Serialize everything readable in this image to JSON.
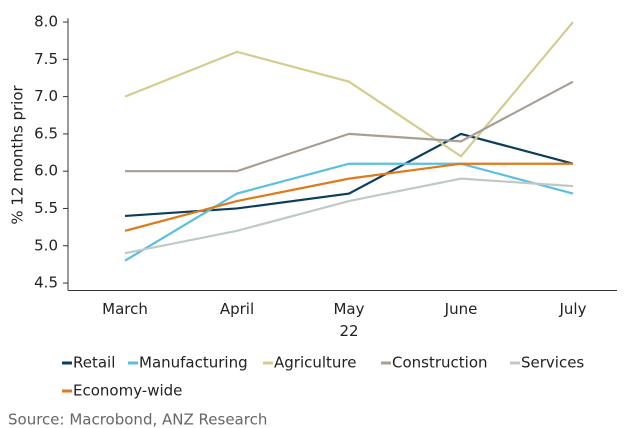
{
  "chart_data": {
    "type": "line",
    "y_label": "% 12 months prior",
    "categories": [
      "March",
      "April",
      "May",
      "June",
      "July"
    ],
    "x_annotation": "22",
    "series": [
      {
        "name": "Retail",
        "color": "#0b3e5e",
        "values": [
          5.4,
          5.5,
          5.7,
          6.5,
          6.1
        ]
      },
      {
        "name": "Manufacturing",
        "color": "#5bc0de",
        "values": [
          4.8,
          5.7,
          6.1,
          6.1,
          5.7
        ]
      },
      {
        "name": "Agriculture",
        "color": "#d4cc8f",
        "values": [
          7.0,
          7.6,
          7.2,
          6.2,
          8.0
        ]
      },
      {
        "name": "Construction",
        "color": "#a89e94",
        "values": [
          6.0,
          6.0,
          6.5,
          6.4,
          7.2
        ]
      },
      {
        "name": "Services",
        "color": "#bfc9c5",
        "values": [
          4.9,
          5.2,
          5.6,
          5.9,
          5.8
        ]
      },
      {
        "name": "Economy-wide",
        "color": "#df7a1c",
        "values": [
          5.2,
          5.6,
          5.9,
          6.1,
          6.1
        ]
      }
    ],
    "ylim": [
      4.4,
      8.05
    ],
    "yticks": [
      4.5,
      {
        "value": 5,
        "label": "5.0"
      },
      5.5,
      {
        "value": 6,
        "label": "6.0"
      },
      6.5,
      {
        "value": 7,
        "label": "7.0"
      },
      7.5,
      {
        "value": 8,
        "label": "8.0"
      }
    ],
    "source": "Source: Macrobond, ANZ Research"
  }
}
